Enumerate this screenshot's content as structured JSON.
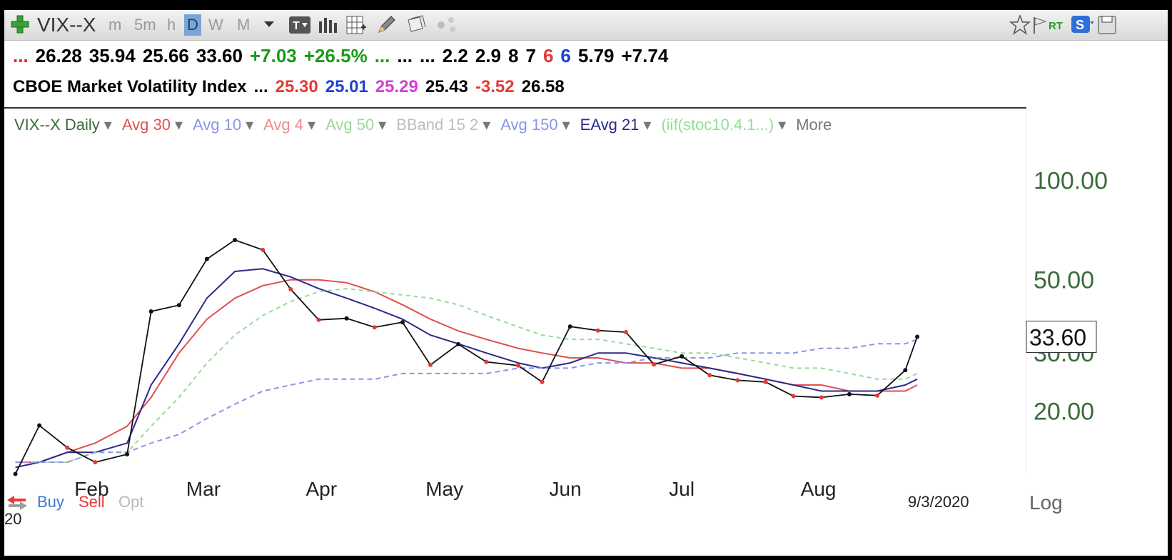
{
  "toolbar": {
    "symbol": "VIX--X",
    "timeframes": [
      "m",
      "5m",
      "h",
      "D",
      "W",
      "M"
    ],
    "active_timeframe": "D"
  },
  "quote": {
    "line1": [
      {
        "text": "...",
        "color": "#d22"
      },
      {
        "text": "26.28",
        "color": "#000"
      },
      {
        "text": "35.94",
        "color": "#000"
      },
      {
        "text": "25.66",
        "color": "#000"
      },
      {
        "text": "33.60",
        "color": "#000"
      },
      {
        "text": "+7.03",
        "color": "#1a9b1a"
      },
      {
        "text": "+26.5%",
        "color": "#1a9b1a"
      },
      {
        "text": "...",
        "color": "#1a9b1a"
      },
      {
        "text": "...",
        "color": "#000"
      },
      {
        "text": "...",
        "color": "#000"
      },
      {
        "text": "2.2",
        "color": "#000"
      },
      {
        "text": "2.9",
        "color": "#000"
      },
      {
        "text": "8",
        "color": "#000"
      },
      {
        "text": "7",
        "color": "#000"
      },
      {
        "text": "6",
        "color": "#e53935"
      },
      {
        "text": "6",
        "color": "#1e40d6"
      },
      {
        "text": "5.79",
        "color": "#000"
      },
      {
        "text": "+7.74",
        "color": "#000"
      }
    ],
    "line2": [
      {
        "text": "CBOE Market Volatility Index",
        "color": "#000"
      },
      {
        "text": "...",
        "color": "#000"
      },
      {
        "text": "25.30",
        "color": "#e53935"
      },
      {
        "text": "25.01",
        "color": "#1e40d6"
      },
      {
        "text": "25.29",
        "color": "#d63cd6"
      },
      {
        "text": "25.43",
        "color": "#000"
      },
      {
        "text": "-3.52",
        "color": "#e53935"
      },
      {
        "text": "26.58",
        "color": "#000"
      }
    ]
  },
  "legend": [
    {
      "text": "VIX--X Daily",
      "color": "#3a6b3a"
    },
    {
      "text": "Avg 30",
      "color": "#e05050"
    },
    {
      "text": "Avg 10",
      "color": "#8a95e8"
    },
    {
      "text": "Avg 4",
      "color": "#f08a8a"
    },
    {
      "text": "Avg 50",
      "color": "#9bd99b"
    },
    {
      "text": "BBand 15 2",
      "color": "#bdbdbd"
    },
    {
      "text": "Avg 150",
      "color": "#8a95e8"
    },
    {
      "text": "EAvg 21",
      "color": "#2a2a8a"
    },
    {
      "text": "(iif(stoc10.4.1...)",
      "color": "#8fe08f"
    },
    {
      "text": "More",
      "color": "#7a7a7a"
    }
  ],
  "trading": {
    "buy": "Buy",
    "sell": "Sell",
    "opt": "Opt"
  },
  "footer": {
    "date": "9/3/2020",
    "log": "Log",
    "year_partial": "20"
  },
  "colors": {
    "price_bar_up": "#111111",
    "price_bar_down": "#e53935",
    "avg30": "#e05050",
    "avg10": "#8a95e8",
    "avg4": "#f08a8a",
    "avg50": "#9bd99b",
    "bband": "#bdbdbd",
    "avg150": "#8a95e8",
    "eavg21": "#2a2a8a",
    "axis_text": "#3a6b3a"
  },
  "chart_data": {
    "type": "line",
    "title": "VIX--X Daily",
    "scale": "log",
    "ylim": [
      13,
      130
    ],
    "y_ticks": [
      100,
      50,
      30,
      20
    ],
    "y_tick_labels": [
      "100.00",
      "50.00",
      "30.00",
      "20.00"
    ],
    "last_price": 33.6,
    "last_price_label": "33.60",
    "x_tick_labels": [
      "Feb",
      "Mar",
      "Apr",
      "May",
      "Jun",
      "Jul",
      "Aug"
    ],
    "x_tick_dates": [
      "2020-02-03",
      "2020-03-02",
      "2020-04-01",
      "2020-05-01",
      "2020-06-01",
      "2020-07-01",
      "2020-08-03"
    ],
    "x_range": [
      "2020-01-20",
      "2020-09-30"
    ],
    "series": [
      {
        "name": "VIX--X Daily",
        "dates": [
          "2020-01-21",
          "2020-01-27",
          "2020-02-03",
          "2020-02-10",
          "2020-02-18",
          "2020-02-24",
          "2020-03-02",
          "2020-03-09",
          "2020-03-16",
          "2020-03-23",
          "2020-03-30",
          "2020-04-06",
          "2020-04-13",
          "2020-04-20",
          "2020-04-27",
          "2020-05-04",
          "2020-05-11",
          "2020-05-18",
          "2020-05-26",
          "2020-06-01",
          "2020-06-08",
          "2020-06-15",
          "2020-06-22",
          "2020-06-29",
          "2020-07-06",
          "2020-07-13",
          "2020-07-20",
          "2020-07-27",
          "2020-08-03",
          "2020-08-10",
          "2020-08-17",
          "2020-08-24",
          "2020-08-31",
          "2020-09-03"
        ],
        "values": [
          12.9,
          18.1,
          15.5,
          14.0,
          14.8,
          40.1,
          41.9,
          57.8,
          66.0,
          61.6,
          46.8,
          37.8,
          38.2,
          35.9,
          37.2,
          27.6,
          31.9,
          28.2,
          27.5,
          24.5,
          36.1,
          35.1,
          34.7,
          27.7,
          29.3,
          25.7,
          24.8,
          24.5,
          22.2,
          22.0,
          22.5,
          22.3,
          26.6,
          33.6
        ]
      },
      {
        "name": "Avg 30",
        "values": [
          14,
          14,
          15,
          16,
          18,
          22,
          30,
          38,
          44,
          48,
          50,
          50,
          49,
          46,
          42,
          38,
          35,
          33,
          31,
          30,
          29,
          29,
          28,
          28,
          27,
          27,
          26,
          25,
          24,
          24,
          23,
          23,
          23,
          24
        ]
      },
      {
        "name": "EAvg 21",
        "values": [
          13.5,
          14,
          15,
          15,
          16,
          24,
          32,
          44,
          53,
          54,
          51,
          47,
          44,
          41,
          38,
          34,
          32,
          30,
          28,
          27,
          28,
          30,
          30,
          29,
          28,
          27,
          26,
          25,
          24,
          23,
          23,
          23,
          24,
          25
        ]
      },
      {
        "name": "Avg 50",
        "values": [
          14,
          14,
          14,
          15,
          15,
          18,
          22,
          28,
          34,
          39,
          43,
          46,
          47,
          46,
          45,
          44,
          42,
          39,
          36,
          34,
          33,
          33,
          32,
          31,
          30,
          30,
          29,
          28,
          27,
          27,
          26,
          25,
          25,
          26
        ]
      },
      {
        "name": "Avg 150",
        "values": [
          14,
          14,
          14,
          15,
          15,
          16,
          17,
          19,
          21,
          23,
          24,
          25,
          25,
          25,
          26,
          26,
          26,
          26,
          27,
          27,
          27,
          28,
          28,
          29,
          29,
          29,
          30,
          30,
          30,
          31,
          31,
          32,
          32,
          33
        ]
      }
    ]
  }
}
